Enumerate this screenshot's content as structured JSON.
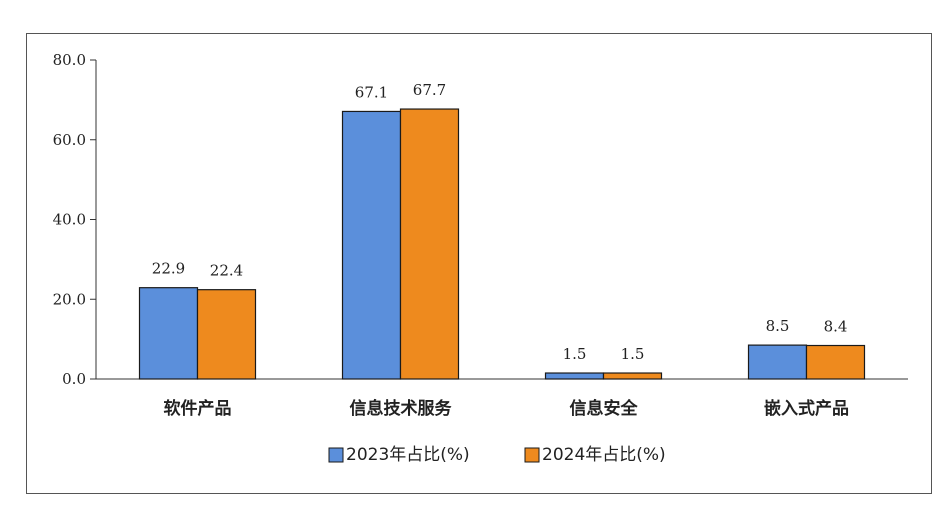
{
  "chart_data": {
    "type": "bar",
    "categories": [
      "软件产品",
      "信息技术服务",
      "信息安全",
      "嵌入式产品"
    ],
    "series": [
      {
        "name": "2023年占比(%)",
        "values": [
          22.9,
          67.1,
          1.5,
          8.5
        ],
        "color": "#5b8fdb"
      },
      {
        "name": "2024年占比(%)",
        "values": [
          22.4,
          67.7,
          1.5,
          8.4
        ],
        "color": "#ee8a1e"
      }
    ],
    "value_labels": [
      [
        "22.9",
        "67.1",
        "1.5",
        "8.5"
      ],
      [
        "22.4",
        "67.7",
        "1.5",
        "8.4"
      ]
    ],
    "ylim": [
      0,
      80
    ],
    "yticks": [
      "0.0",
      "20.0",
      "40.0",
      "60.0",
      "80.0"
    ],
    "ytick_values": [
      0,
      20,
      40,
      60,
      80
    ],
    "grid": false,
    "legend_position": "bottom-center",
    "title": "",
    "xlabel": "",
    "ylabel": ""
  }
}
